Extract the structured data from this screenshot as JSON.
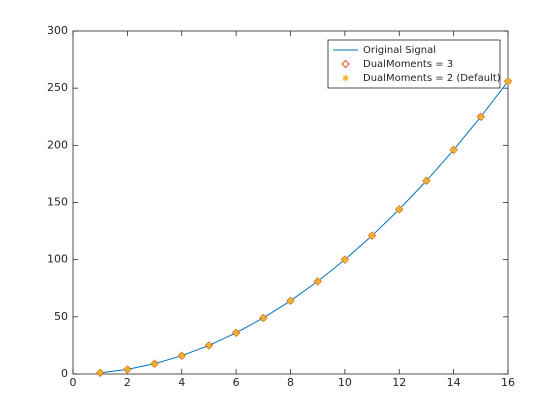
{
  "chart_data": {
    "type": "line",
    "x": [
      1,
      2,
      3,
      4,
      5,
      6,
      7,
      8,
      9,
      10,
      11,
      12,
      13,
      14,
      15,
      16
    ],
    "series": [
      {
        "name": "Original Signal",
        "color": "#0072bd",
        "marker": "none",
        "line": true,
        "values": [
          1,
          4,
          9,
          16,
          25,
          36,
          49,
          64,
          81,
          100,
          121,
          144,
          169,
          196,
          225,
          256
        ]
      },
      {
        "name": "DualMoments = 3",
        "color": "#d95319",
        "marker": "diamond",
        "line": false,
        "values": [
          1,
          4,
          9,
          16,
          25,
          36,
          49,
          64,
          81,
          100,
          121,
          144,
          169,
          196,
          225,
          256
        ]
      },
      {
        "name": "DualMoments = 2 (Default)",
        "color": "#edb120",
        "marker": "asterisk",
        "line": false,
        "values": [
          1,
          4,
          9,
          16,
          25,
          36,
          49,
          64,
          81,
          100,
          121,
          144,
          169,
          196,
          225,
          256
        ]
      }
    ],
    "xlim": [
      0,
      16
    ],
    "xticks": [
      0,
      2,
      4,
      6,
      8,
      10,
      12,
      14,
      16
    ],
    "ylim": [
      0,
      300
    ],
    "yticks": [
      0,
      50,
      100,
      150,
      200,
      250,
      300
    ],
    "legend": "northeast",
    "box": true
  }
}
